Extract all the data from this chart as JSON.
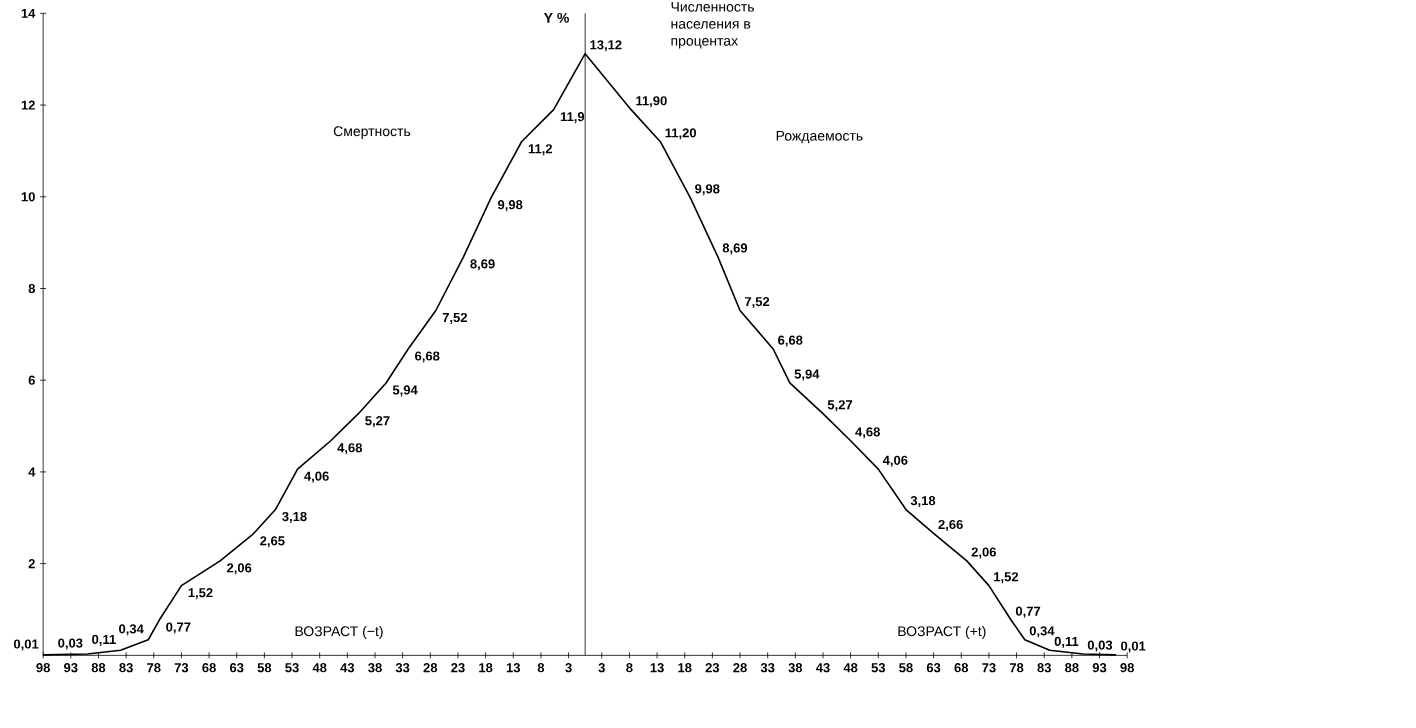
{
  "chart_data": {
    "type": "line",
    "ylabel": "Y %",
    "annotations": [
      "Численность населения в процентах",
      "Смертность",
      "Рождаемость",
      "ВОЗРАСТ (−t)",
      "ВОЗРАСТ (+t)"
    ],
    "xlim": [
      -98,
      98
    ],
    "ylim": [
      0,
      14
    ],
    "yticks": [
      2,
      4,
      6,
      8,
      10,
      12,
      14
    ],
    "xticks": [
      {
        "value": -98,
        "label": "98"
      },
      {
        "value": -93,
        "label": "93"
      },
      {
        "value": -88,
        "label": "88"
      },
      {
        "value": -83,
        "label": "83"
      },
      {
        "value": -78,
        "label": "78"
      },
      {
        "value": -73,
        "label": "73"
      },
      {
        "value": -68,
        "label": "68"
      },
      {
        "value": -63,
        "label": "63"
      },
      {
        "value": -58,
        "label": "58"
      },
      {
        "value": -53,
        "label": "53"
      },
      {
        "value": -48,
        "label": "48"
      },
      {
        "value": -43,
        "label": "43"
      },
      {
        "value": -38,
        "label": "38"
      },
      {
        "value": -33,
        "label": "33"
      },
      {
        "value": -28,
        "label": "28"
      },
      {
        "value": -23,
        "label": "23"
      },
      {
        "value": -18,
        "label": "18"
      },
      {
        "value": -13,
        "label": "13"
      },
      {
        "value": -8,
        "label": "8"
      },
      {
        "value": -3,
        "label": "3"
      },
      {
        "value": 3,
        "label": "3"
      },
      {
        "value": 8,
        "label": "8"
      },
      {
        "value": 13,
        "label": "13"
      },
      {
        "value": 18,
        "label": "18"
      },
      {
        "value": 23,
        "label": "23"
      },
      {
        "value": 28,
        "label": "28"
      },
      {
        "value": 33,
        "label": "33"
      },
      {
        "value": 38,
        "label": "38"
      },
      {
        "value": 43,
        "label": "43"
      },
      {
        "value": 48,
        "label": "48"
      },
      {
        "value": 53,
        "label": "53"
      },
      {
        "value": 58,
        "label": "58"
      },
      {
        "value": 63,
        "label": "63"
      },
      {
        "value": 68,
        "label": "68"
      },
      {
        "value": 73,
        "label": "73"
      },
      {
        "value": 78,
        "label": "78"
      },
      {
        "value": 83,
        "label": "83"
      },
      {
        "value": 88,
        "label": "88"
      },
      {
        "value": 93,
        "label": "93"
      },
      {
        "value": 98,
        "label": "98"
      }
    ],
    "ref_lines": [
      {
        "axis": "x",
        "value": 0,
        "color": "#000000"
      }
    ],
    "series": [
      {
        "color": "#000000",
        "x": [
          -98,
          -90,
          -84,
          -79,
          -77,
          -73,
          -66,
          -60,
          -56,
          -52,
          -46,
          -41,
          -36,
          -32,
          -27,
          -22,
          -17,
          -11.5,
          -5.7,
          0,
          8.3,
          13.6,
          19,
          24,
          28,
          34,
          37,
          43,
          48,
          53,
          58,
          63,
          69,
          73,
          77,
          79.5,
          84,
          90,
          96
        ],
        "values": [
          0.01,
          0.03,
          0.11,
          0.34,
          0.77,
          1.52,
          2.06,
          2.65,
          3.18,
          4.06,
          4.68,
          5.27,
          5.94,
          6.68,
          7.52,
          8.69,
          9.98,
          11.2,
          11.9,
          13.12,
          11.9,
          11.2,
          9.98,
          8.69,
          7.52,
          6.68,
          5.94,
          5.27,
          4.68,
          4.06,
          3.18,
          2.66,
          2.06,
          1.52,
          0.77,
          0.34,
          0.11,
          0.03,
          0.01
        ],
        "value_labels": [
          "0,01",
          "0,03",
          "0,11",
          "0,34",
          "0,77",
          "1,52",
          "2,06",
          "2,65",
          "3,18",
          "4,06",
          "4,68",
          "5,27",
          "5,94",
          "6,68",
          "7,52",
          "8,69",
          "9,98",
          "11,2",
          "11,9",
          "13,12",
          "11,90",
          "11,20",
          "9,98",
          "8,69",
          "7,52",
          "6,68",
          "5,94",
          "5,27",
          "4,68",
          "4,06",
          "3,18",
          "2,66",
          "2,06",
          "1,52",
          "0,77",
          "0,34",
          "0,11",
          "0,03",
          "0,01"
        ]
      }
    ]
  }
}
